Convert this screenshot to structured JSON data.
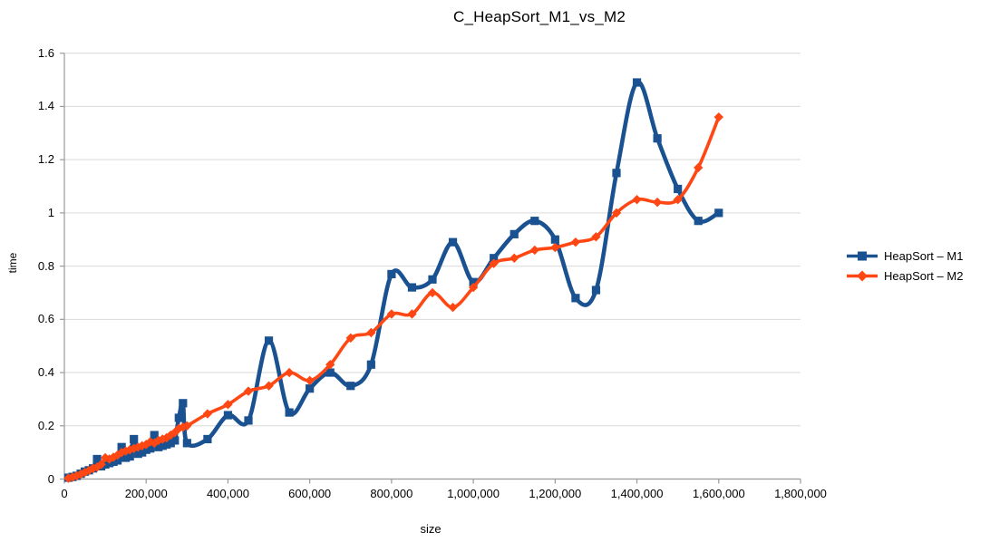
{
  "chart_data": {
    "type": "line",
    "title": "C_HeapSort_M1_vs_M2",
    "xlabel": "size",
    "ylabel": "time",
    "xlim": [
      0,
      1800000
    ],
    "ylim": [
      0,
      1.6
    ],
    "grid": true,
    "smooth_lines": true,
    "legend_position": "right",
    "x_ticks": [
      0,
      200000,
      400000,
      600000,
      800000,
      1000000,
      1200000,
      1400000,
      1600000,
      1800000
    ],
    "x_tick_labels": [
      "0",
      "200,000",
      "400,000",
      "600,000",
      "800,000",
      "1,000,000",
      "1,200,000",
      "1,400,000",
      "1,600,000",
      "1,800,000"
    ],
    "y_ticks": [
      0,
      0.2,
      0.4,
      0.6,
      0.8,
      1.0,
      1.2,
      1.4,
      1.6
    ],
    "y_tick_labels": [
      "0",
      "0.2",
      "0.4",
      "0.6",
      "0.8",
      "1",
      "1.2",
      "1.4",
      "1.6"
    ],
    "x": [
      10000,
      20000,
      30000,
      40000,
      50000,
      60000,
      70000,
      80000,
      90000,
      100000,
      110000,
      120000,
      130000,
      140000,
      150000,
      160000,
      170000,
      180000,
      190000,
      200000,
      210000,
      220000,
      230000,
      240000,
      250000,
      260000,
      270000,
      280000,
      290000,
      300000,
      350000,
      400000,
      450000,
      500000,
      550000,
      600000,
      650000,
      700000,
      750000,
      800000,
      850000,
      900000,
      950000,
      1000000,
      1050000,
      1100000,
      1150000,
      1200000,
      1250000,
      1300000,
      1350000,
      1400000,
      1450000,
      1500000,
      1550000,
      1600000
    ],
    "series": [
      {
        "name": "HeapSort – M1",
        "marker": "square",
        "color": "#1a5291",
        "values": [
          0.005,
          0.008,
          0.012,
          0.02,
          0.028,
          0.033,
          0.04,
          0.075,
          0.048,
          0.055,
          0.06,
          0.065,
          0.07,
          0.12,
          0.08,
          0.085,
          0.15,
          0.095,
          0.1,
          0.11,
          0.115,
          0.165,
          0.12,
          0.125,
          0.13,
          0.135,
          0.145,
          0.23,
          0.285,
          0.135,
          0.15,
          0.24,
          0.22,
          0.52,
          0.25,
          0.34,
          0.4,
          0.35,
          0.43,
          0.77,
          0.72,
          0.75,
          0.89,
          0.74,
          0.83,
          0.92,
          0.97,
          0.9,
          0.68,
          0.71,
          1.15,
          1.49,
          1.28,
          1.09,
          0.97,
          1.0
        ]
      },
      {
        "name": "HeapSort – M2",
        "marker": "diamond",
        "color": "#ff4713",
        "values": [
          0.003,
          0.007,
          0.012,
          0.018,
          0.025,
          0.032,
          0.04,
          0.045,
          0.055,
          0.08,
          0.075,
          0.082,
          0.09,
          0.1,
          0.105,
          0.11,
          0.115,
          0.12,
          0.125,
          0.13,
          0.14,
          0.135,
          0.145,
          0.15,
          0.155,
          0.165,
          0.175,
          0.19,
          0.195,
          0.2,
          0.245,
          0.28,
          0.33,
          0.35,
          0.4,
          0.37,
          0.43,
          0.53,
          0.55,
          0.62,
          0.62,
          0.7,
          0.645,
          0.72,
          0.81,
          0.83,
          0.86,
          0.87,
          0.89,
          0.91,
          1.0,
          1.05,
          1.04,
          1.05,
          1.17,
          1.36
        ]
      }
    ],
    "colors": {
      "background": "#ffffff",
      "gridline": "#d9d9d9",
      "axis": "#9a9a9a",
      "text": "#000000"
    }
  }
}
